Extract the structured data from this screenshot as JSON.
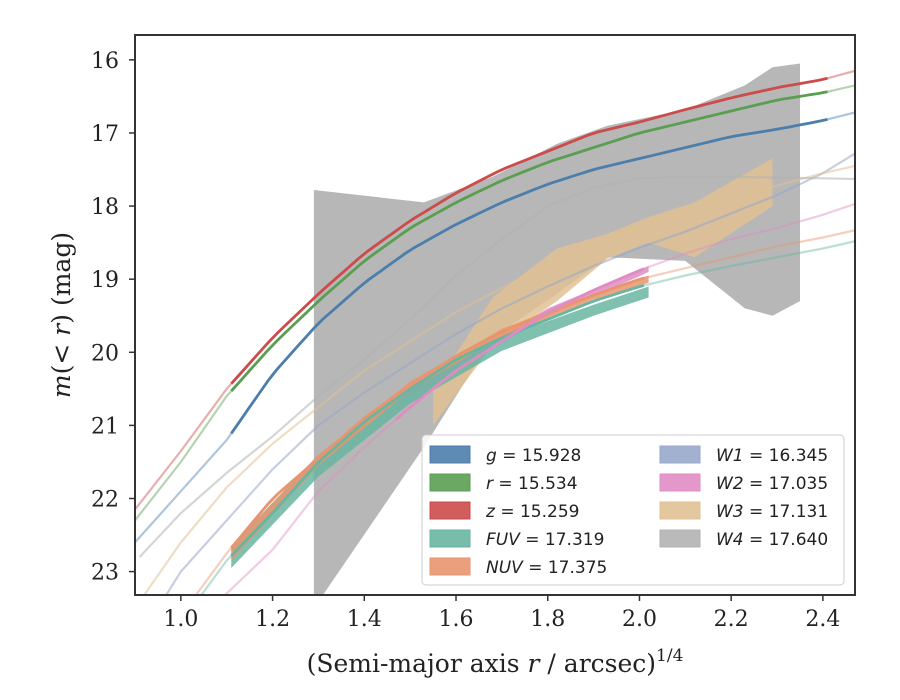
{
  "chart_data": {
    "type": "line",
    "title": "",
    "xlabel_main": "(Semi-major axis ",
    "xlabel_r": "r",
    "xlabel_unit": " / arcsec)",
    "xlabel_sup": "1/4",
    "ylabel_m": "m",
    "ylabel_open": "(",
    "ylabel_lt": "< ",
    "ylabel_r": "r",
    "ylabel_close": ") (mag)",
    "xlim": [
      0.9,
      2.47
    ],
    "ylim": [
      23.32,
      15.66
    ],
    "y_inverted": true,
    "xticks": [
      "1.0",
      "1.2",
      "1.4",
      "1.6",
      "1.8",
      "2.0",
      "2.2",
      "2.4"
    ],
    "yticks": [
      "16",
      "17",
      "18",
      "19",
      "20",
      "21",
      "22",
      "23"
    ],
    "grid": false,
    "legend_position": "lower-right",
    "series": [
      {
        "key": "g",
        "name": "g = 15.928",
        "legend_name": "g",
        "legend_value": "15.928",
        "color": "#4c7eac",
        "x": [
          0.9,
          1.0,
          1.1,
          1.2,
          1.3,
          1.4,
          1.5,
          1.6,
          1.7,
          1.8,
          1.9,
          2.0,
          2.1,
          2.2,
          2.3,
          2.4,
          2.47
        ],
        "y": [
          22.6,
          21.9,
          21.2,
          20.3,
          19.6,
          19.05,
          18.6,
          18.25,
          17.95,
          17.7,
          17.5,
          17.35,
          17.2,
          17.05,
          16.95,
          16.83,
          16.72
        ],
        "fit_from": 1.11,
        "band": []
      },
      {
        "key": "r",
        "name": "r = 15.534",
        "legend_name": "r",
        "legend_value": "15.534",
        "color": "#5a9e52",
        "x": [
          0.9,
          1.0,
          1.1,
          1.2,
          1.3,
          1.4,
          1.5,
          1.6,
          1.7,
          1.8,
          1.9,
          2.0,
          2.1,
          2.2,
          2.3,
          2.4,
          2.47
        ],
        "y": [
          22.3,
          21.5,
          20.6,
          19.9,
          19.3,
          18.75,
          18.3,
          17.95,
          17.65,
          17.4,
          17.2,
          17.0,
          16.85,
          16.7,
          16.55,
          16.45,
          16.35
        ],
        "fit_from": 1.11,
        "band": []
      },
      {
        "key": "z",
        "name": "z = 15.259",
        "legend_name": "z",
        "legend_value": "15.259",
        "color": "#cc4b4b",
        "x": [
          0.9,
          1.0,
          1.1,
          1.2,
          1.3,
          1.4,
          1.5,
          1.6,
          1.7,
          1.8,
          1.9,
          2.0,
          2.1,
          2.2,
          2.3,
          2.4,
          2.47
        ],
        "y": [
          22.15,
          21.35,
          20.5,
          19.8,
          19.2,
          18.65,
          18.2,
          17.82,
          17.5,
          17.25,
          17.0,
          16.85,
          16.68,
          16.52,
          16.38,
          16.27,
          16.15
        ],
        "fit_from": 1.11,
        "band": []
      },
      {
        "key": "fuv",
        "name": "FUV = 17.319",
        "legend_name": "FUV",
        "legend_value": "17.319",
        "color": "#69b5a1",
        "x": [
          0.9,
          1.0,
          1.1,
          1.2,
          1.3,
          1.4,
          1.5,
          1.6,
          1.7,
          1.8,
          1.9,
          2.0,
          2.1,
          2.2,
          2.3,
          2.4,
          2.47
        ],
        "y": [
          24.5,
          23.7,
          22.85,
          22.2,
          21.5,
          20.95,
          20.5,
          20.1,
          19.8,
          19.55,
          19.3,
          19.1,
          18.95,
          18.82,
          18.7,
          18.58,
          18.48
        ],
        "fit_from": 1.11,
        "band": [
          {
            "x": 1.11,
            "y1": 22.65,
            "y2": 22.95
          },
          {
            "x": 1.3,
            "y1": 21.4,
            "y2": 21.7
          },
          {
            "x": 1.5,
            "y1": 20.45,
            "y2": 20.7
          },
          {
            "x": 1.7,
            "y1": 19.8,
            "y2": 19.98
          },
          {
            "x": 1.9,
            "y1": 19.35,
            "y2": 19.5
          },
          {
            "x": 2.02,
            "y1": 19.1,
            "y2": 19.25
          }
        ]
      },
      {
        "key": "nuv",
        "name": "NUV = 17.375",
        "legend_name": "NUV",
        "legend_value": "17.375",
        "color": "#e8956f",
        "x": [
          0.9,
          1.0,
          1.1,
          1.2,
          1.3,
          1.4,
          1.5,
          1.6,
          1.7,
          1.8,
          1.9,
          2.0,
          2.1,
          2.2,
          2.3,
          2.4,
          2.47
        ],
        "y": [
          24.5,
          23.6,
          22.75,
          22.0,
          21.45,
          20.9,
          20.45,
          20.05,
          19.72,
          19.45,
          19.22,
          19.0,
          18.85,
          18.7,
          18.55,
          18.43,
          18.33
        ],
        "fit_from": 1.11,
        "band": [
          {
            "x": 1.11,
            "y1": 22.65,
            "y2": 22.85
          },
          {
            "x": 1.3,
            "y1": 21.4,
            "y2": 21.55
          },
          {
            "x": 1.5,
            "y1": 20.4,
            "y2": 20.52
          },
          {
            "x": 1.7,
            "y1": 19.68,
            "y2": 19.78
          },
          {
            "x": 1.9,
            "y1": 19.2,
            "y2": 19.28
          },
          {
            "x": 2.02,
            "y1": 18.95,
            "y2": 19.05
          }
        ]
      },
      {
        "key": "w1",
        "name": "W1 = 16.345",
        "legend_name": "W1",
        "legend_value": "16.345",
        "color": "#98a8cb",
        "x": [
          0.9,
          1.0,
          1.1,
          1.2,
          1.3,
          1.4,
          1.5,
          1.6,
          1.7,
          1.8,
          1.9,
          2.0,
          2.1,
          2.2,
          2.3,
          2.4,
          2.47
        ],
        "y": [
          24.0,
          23.0,
          22.3,
          21.6,
          21.0,
          20.55,
          20.15,
          19.75,
          19.4,
          19.1,
          18.82,
          18.57,
          18.35,
          18.1,
          17.85,
          17.55,
          17.28
        ],
        "fit_from": 99,
        "band": []
      },
      {
        "key": "w2",
        "name": "W2 = 17.035",
        "legend_name": "W2",
        "legend_value": "17.035",
        "color": "#e08cc4",
        "x": [
          1.0,
          1.1,
          1.2,
          1.3,
          1.4,
          1.5,
          1.6,
          1.7,
          1.8,
          1.9,
          2.0,
          2.1,
          2.2,
          2.3,
          2.4,
          2.47
        ],
        "y": [
          24.3,
          23.3,
          22.7,
          21.9,
          21.3,
          20.75,
          20.25,
          19.85,
          19.45,
          19.15,
          18.88,
          18.65,
          18.45,
          18.3,
          18.12,
          17.97
        ],
        "fit_from": 1.47,
        "band": [
          {
            "x": 1.47,
            "y1": 20.62,
            "y2": 20.7
          },
          {
            "x": 1.6,
            "y1": 20.15,
            "y2": 20.25
          },
          {
            "x": 1.8,
            "y1": 19.4,
            "y2": 19.5
          },
          {
            "x": 2.0,
            "y1": 18.88,
            "y2": 18.96
          },
          {
            "x": 2.02,
            "y1": 18.82,
            "y2": 18.9
          }
        ]
      },
      {
        "key": "w3",
        "name": "W3 = 17.131",
        "legend_name": "W3",
        "legend_value": "17.131",
        "color": "#e0c193",
        "x": [
          0.9,
          1.0,
          1.1,
          1.2,
          1.3,
          1.4,
          1.5,
          1.6,
          1.7,
          1.8,
          1.9,
          2.0,
          2.1,
          2.2,
          2.3,
          2.4,
          2.47
        ],
        "y": [
          23.5,
          22.6,
          21.85,
          21.25,
          20.75,
          20.25,
          19.85,
          19.45,
          19.12,
          18.8,
          18.55,
          18.3,
          18.1,
          17.9,
          17.72,
          17.55,
          17.45
        ],
        "fit_from": 99,
        "band": [
          {
            "x": 1.55,
            "y1": 20.5,
            "y2": 21.0
          },
          {
            "x": 1.68,
            "y1": 19.25,
            "y2": 19.9
          },
          {
            "x": 1.82,
            "y1": 18.58,
            "y2": 19.3
          },
          {
            "x": 1.93,
            "y1": 18.38,
            "y2": 18.72
          },
          {
            "x": 2.02,
            "y1": 18.15,
            "y2": 18.5
          },
          {
            "x": 2.12,
            "y1": 17.95,
            "y2": 18.7
          },
          {
            "x": 2.29,
            "y1": 17.35,
            "y2": 18.0
          }
        ]
      },
      {
        "key": "w4",
        "name": "W4 = 17.640",
        "legend_name": "W4",
        "legend_value": "17.640",
        "color": "#b3b3b3",
        "x": [
          0.91,
          1.0,
          1.1,
          1.2,
          1.3,
          1.4,
          1.5,
          1.6,
          1.7,
          1.8,
          1.9,
          2.0,
          2.1,
          2.2,
          2.3,
          2.4,
          2.47
        ],
        "y": [
          22.8,
          22.2,
          21.65,
          21.15,
          20.6,
          20.1,
          19.55,
          18.95,
          18.45,
          18.0,
          17.75,
          17.62,
          17.6,
          17.6,
          17.61,
          17.62,
          17.63
        ],
        "fit_from": 99,
        "band": [
          {
            "x": 1.29,
            "y1": 17.78,
            "y2": 23.5
          },
          {
            "x": 1.53,
            "y1": 17.95,
            "y2": 21.3
          },
          {
            "x": 1.68,
            "y1": 17.6,
            "y2": 19.8
          },
          {
            "x": 1.82,
            "y1": 17.15,
            "y2": 19.2
          },
          {
            "x": 1.93,
            "y1": 16.9,
            "y2": 18.7
          },
          {
            "x": 2.1,
            "y1": 16.68,
            "y2": 18.75
          },
          {
            "x": 2.23,
            "y1": 16.35,
            "y2": 19.4
          },
          {
            "x": 2.29,
            "y1": 16.1,
            "y2": 19.5
          },
          {
            "x": 2.35,
            "y1": 16.05,
            "y2": 19.3
          }
        ]
      }
    ]
  }
}
